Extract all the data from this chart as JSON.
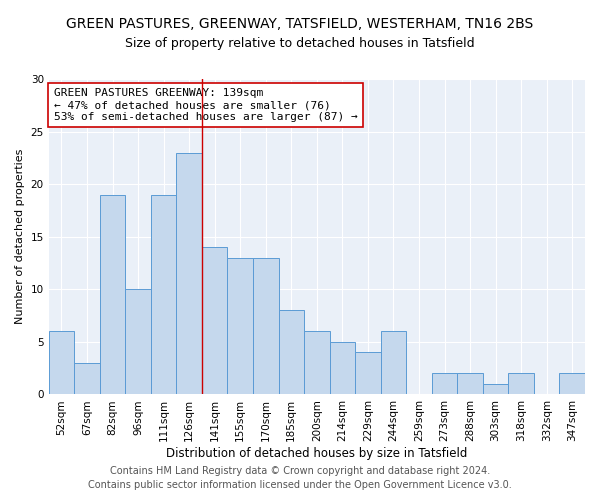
{
  "title": "GREEN PASTURES, GREENWAY, TATSFIELD, WESTERHAM, TN16 2BS",
  "subtitle": "Size of property relative to detached houses in Tatsfield",
  "xlabel": "Distribution of detached houses by size in Tatsfield",
  "ylabel": "Number of detached properties",
  "categories": [
    "52sqm",
    "67sqm",
    "82sqm",
    "96sqm",
    "111sqm",
    "126sqm",
    "141sqm",
    "155sqm",
    "170sqm",
    "185sqm",
    "200sqm",
    "214sqm",
    "229sqm",
    "244sqm",
    "259sqm",
    "273sqm",
    "288sqm",
    "303sqm",
    "318sqm",
    "332sqm",
    "347sqm"
  ],
  "values": [
    6,
    3,
    19,
    10,
    19,
    23,
    14,
    13,
    13,
    8,
    6,
    5,
    4,
    6,
    0,
    2,
    2,
    1,
    2,
    0,
    2
  ],
  "bar_color": "#c5d8ed",
  "bar_edge_color": "#5b9bd5",
  "property_line_x": 5.5,
  "property_line_color": "#cc0000",
  "annotation_text": "GREEN PASTURES GREENWAY: 139sqm\n← 47% of detached houses are smaller (76)\n53% of semi-detached houses are larger (87) →",
  "annotation_box_color": "#ffffff",
  "annotation_box_edge": "#cc0000",
  "ylim": [
    0,
    30
  ],
  "yticks": [
    0,
    5,
    10,
    15,
    20,
    25,
    30
  ],
  "footer_line1": "Contains HM Land Registry data © Crown copyright and database right 2024.",
  "footer_line2": "Contains public sector information licensed under the Open Government Licence v3.0.",
  "background_color": "#eaf0f8",
  "title_fontsize": 10,
  "subtitle_fontsize": 9,
  "xlabel_fontsize": 8.5,
  "ylabel_fontsize": 8,
  "tick_fontsize": 7.5,
  "annotation_fontsize": 8,
  "footer_fontsize": 7
}
